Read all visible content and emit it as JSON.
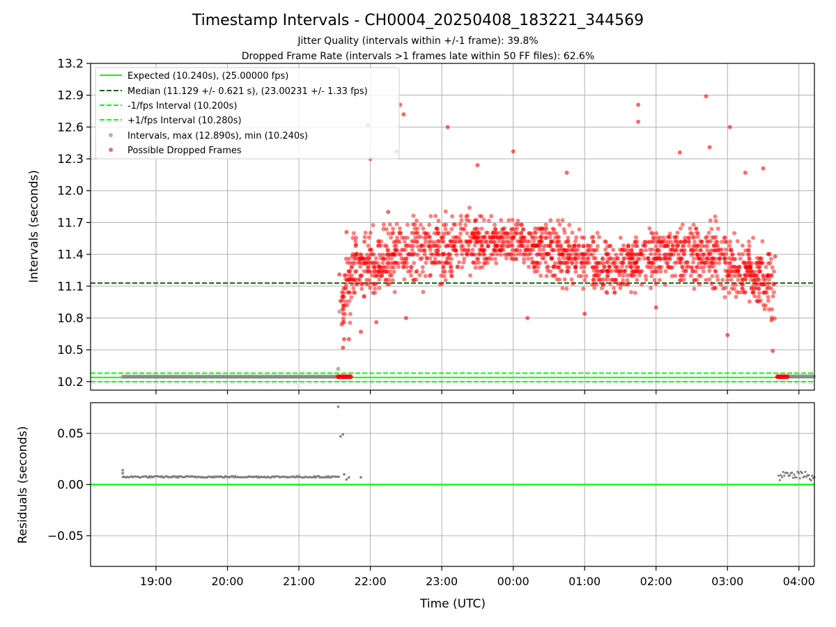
{
  "figure": {
    "title": "Timestamp Intervals - CH0004_20250408_183221_344569",
    "subtitle_1": "Jitter Quality (intervals within +/-1 frame): 39.8%",
    "subtitle_2": "Dropped Frame Rate (intervals >1 frames late within 50 FF files): 62.6%"
  },
  "chart_data": [
    {
      "type": "scatter",
      "panel": "intervals",
      "ylabel": "Intervals (seconds)",
      "xlabel": "",
      "ylim": [
        10.12,
        13.2
      ],
      "xlim": [
        "18:05",
        "04:13"
      ],
      "y_ticks": [
        10.2,
        10.5,
        10.8,
        11.1,
        11.4,
        11.7,
        12.0,
        12.3,
        12.6,
        12.9,
        13.2
      ],
      "y_tick_labels": [
        "10.2",
        "10.5",
        "10.8",
        "11.1",
        "11.4",
        "11.7",
        "12.0",
        "12.3",
        "12.6",
        "12.9",
        "13.2"
      ],
      "grid": true,
      "legend_position": "top-left",
      "series": [
        {
          "name": "Expected (10.240s), (25.00000 fps)",
          "kind": "hline",
          "y": 10.24,
          "color": "#00ff00",
          "style": "solid"
        },
        {
          "name": "Median (11.129 +/- 0.621 s), (23.00231 +/- 1.33 fps)",
          "kind": "hline",
          "y": 11.129,
          "color": "#006400",
          "style": "dashed"
        },
        {
          "name": "-1/fps Interval (10.200s)",
          "kind": "hline",
          "y": 10.2,
          "color": "#00ff00",
          "style": "dashed"
        },
        {
          "name": "+1/fps Interval (10.280s)",
          "kind": "hline",
          "y": 10.28,
          "color": "#00ff00",
          "style": "dashed"
        },
        {
          "name": "Intervals, max (12.890s), min (10.240s)",
          "kind": "scatter",
          "color": "#808080",
          "segments": [
            {
              "x_start": "18:32",
              "x_end": "21:36",
              "y": 10.247
            },
            {
              "x_start": "03:43",
              "x_end": "04:13",
              "y": 10.249
            }
          ],
          "points": [
            {
              "x": "21:34",
              "y": 10.86
            },
            {
              "x": "21:33",
              "y": 10.32
            }
          ]
        },
        {
          "name": "Possible Dropped Frames",
          "kind": "scatter",
          "color": "#ff0000",
          "points": [
            {
              "x": "21:34",
              "y": 11.21
            },
            {
              "x": "21:35",
              "y": 10.96
            },
            {
              "x": "21:36",
              "y": 10.74
            },
            {
              "x": "21:37",
              "y": 10.52
            },
            {
              "x": "21:38",
              "y": 10.6
            },
            {
              "x": "21:40",
              "y": 11.61
            },
            {
              "x": "21:42",
              "y": 10.6
            },
            {
              "x": "21:45",
              "y": 11.38
            },
            {
              "x": "21:48",
              "y": 11.49
            },
            {
              "x": "21:52",
              "y": 10.67
            },
            {
              "x": "21:55",
              "y": 11.52
            },
            {
              "x": "21:58",
              "y": 12.62
            },
            {
              "x": "22:00",
              "y": 12.3
            },
            {
              "x": "22:05",
              "y": 10.76
            },
            {
              "x": "22:15",
              "y": 11.8
            },
            {
              "x": "22:22",
              "y": 12.37
            },
            {
              "x": "22:25",
              "y": 12.81
            },
            {
              "x": "22:28",
              "y": 12.72
            },
            {
              "x": "22:30",
              "y": 10.8
            },
            {
              "x": "23:05",
              "y": 12.6
            },
            {
              "x": "23:30",
              "y": 12.24
            },
            {
              "x": "00:00",
              "y": 12.37
            },
            {
              "x": "00:12",
              "y": 10.8
            },
            {
              "x": "00:45",
              "y": 12.17
            },
            {
              "x": "01:00",
              "y": 10.84
            },
            {
              "x": "01:45",
              "y": 12.81
            },
            {
              "x": "01:45",
              "y": 12.65
            },
            {
              "x": "02:00",
              "y": 10.9
            },
            {
              "x": "02:20",
              "y": 12.36
            },
            {
              "x": "02:42",
              "y": 12.89
            },
            {
              "x": "02:45",
              "y": 12.41
            },
            {
              "x": "03:00",
              "y": 10.64
            },
            {
              "x": "03:02",
              "y": 12.6
            },
            {
              "x": "03:15",
              "y": 12.17
            },
            {
              "x": "03:30",
              "y": 12.21
            },
            {
              "x": "03:37",
              "y": 10.78
            },
            {
              "x": "03:38",
              "y": 10.49
            },
            {
              "x": "03:40",
              "y": 11.38
            }
          ],
          "runs": [
            {
              "x_start": "21:33",
              "x_end": "21:44",
              "y": 10.247
            },
            {
              "x_start": "03:42",
              "x_end": "03:51",
              "y": 10.247
            }
          ]
        }
      ]
    },
    {
      "type": "scatter",
      "panel": "residuals",
      "ylabel": "Residuals (seconds)",
      "xlabel": "Time (UTC)",
      "ylim": [
        -0.08,
        0.08
      ],
      "xlim": [
        "18:05",
        "04:13"
      ],
      "y_ticks": [
        0.05,
        0.0,
        -0.05
      ],
      "y_tick_labels": [
        "0.05",
        "0.00",
        "−0.05"
      ],
      "x_ticks": [
        "19:00",
        "20:00",
        "21:00",
        "22:00",
        "23:00",
        "00:00",
        "01:00",
        "02:00",
        "03:00",
        "04:00"
      ],
      "x_tick_labels": [
        "19:00",
        "20:00",
        "21:00",
        "22:00",
        "23:00",
        "00:00",
        "01:00",
        "02:00",
        "03:00",
        "04:00"
      ],
      "grid": true,
      "series": [
        {
          "kind": "hline",
          "y": 0.0,
          "color": "#00ff00",
          "style": "solid"
        },
        {
          "kind": "scatter",
          "color": "#808080",
          "segments": [
            {
              "x_start": "18:32",
              "x_end": "21:34",
              "y": 0.0075
            },
            {
              "x_start": "03:43",
              "x_end": "04:13",
              "y": 0.0085
            }
          ],
          "points": [
            {
              "x": "18:32",
              "y": 0.014
            },
            {
              "x": "18:32",
              "y": 0.011
            },
            {
              "x": "21:33",
              "y": 0.076
            },
            {
              "x": "21:35",
              "y": 0.047
            },
            {
              "x": "21:37",
              "y": 0.049
            },
            {
              "x": "21:38",
              "y": 0.01
            },
            {
              "x": "21:40",
              "y": 0.005
            },
            {
              "x": "21:42",
              "y": 0.007
            },
            {
              "x": "21:52",
              "y": 0.007
            }
          ]
        }
      ]
    }
  ]
}
